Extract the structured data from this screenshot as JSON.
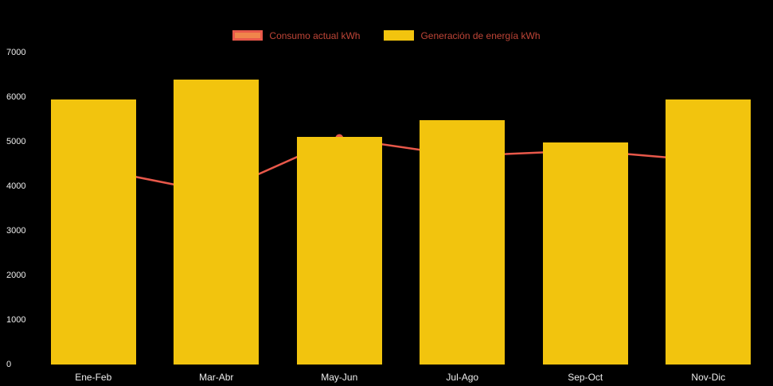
{
  "chart_data": {
    "type": "bar",
    "categories": [
      "Ene-Feb",
      "Mar-Abr",
      "May-Jun",
      "Jul-Ago",
      "Sep-Oct",
      "Nov-Dic"
    ],
    "series": [
      {
        "name": "Consumo actual kWh",
        "type": "line",
        "values": [
          4400,
          3850,
          5080,
          4680,
          4800,
          4570
        ],
        "color": "#e8584a"
      },
      {
        "name": "Generación de energía kWh",
        "type": "bar",
        "values": [
          5950,
          6400,
          5100,
          5480,
          4980,
          5950
        ],
        "color": "#f2c40e"
      }
    ],
    "title": "",
    "xlabel": "",
    "ylabel": "",
    "ylim": [
      0,
      7000
    ],
    "yticks": [
      0,
      1000,
      2000,
      3000,
      4000,
      5000,
      6000,
      7000
    ],
    "grid": false,
    "legend_position": "top"
  },
  "legend": {
    "items": [
      {
        "label": "Consumo actual kWh",
        "swatch_fill": "#f0854b",
        "swatch_border": "#e8584a"
      },
      {
        "label": "Generación de energía kWh",
        "swatch_fill": "#f2c40e",
        "swatch_border": "#f2c40e"
      }
    ],
    "text_color": "#bf4537"
  },
  "colors": {
    "background": "#000000",
    "axis_text": "#ededed"
  }
}
